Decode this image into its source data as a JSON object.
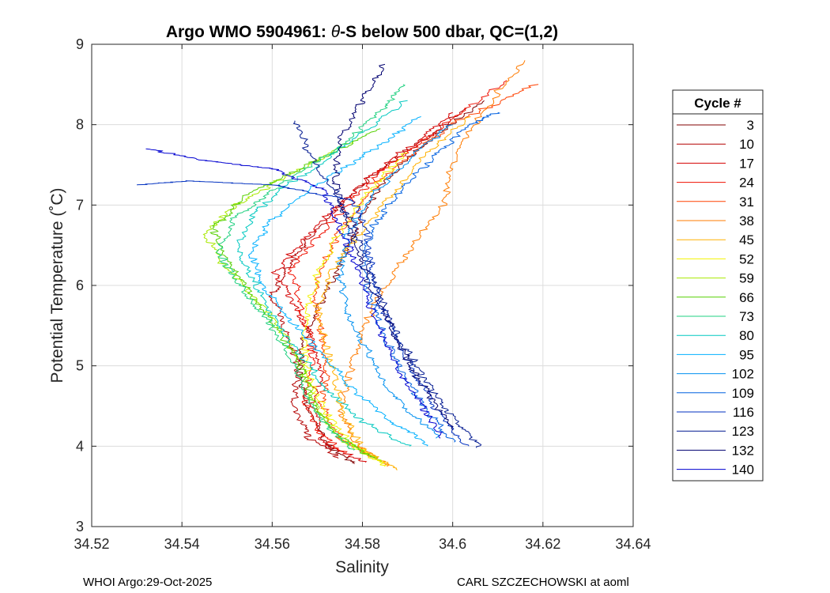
{
  "chart_data": {
    "type": "line",
    "title_prefix": "Argo WMO 5904961: ",
    "title_theta": "θ",
    "title_suffix": "-S below 500 dbar,  QC=(1,2)",
    "xlabel": "Salinity",
    "ylabel": "Potential Temperature (˚C)",
    "xlim": [
      34.52,
      34.64
    ],
    "ylim": [
      3,
      9
    ],
    "xticks": [
      34.52,
      34.54,
      34.56,
      34.58,
      34.6,
      34.62,
      34.64
    ],
    "xtick_labels": [
      "34.52",
      "34.54",
      "34.56",
      "34.58",
      "34.6",
      "34.62",
      "34.64"
    ],
    "yticks": [
      3,
      4,
      5,
      6,
      7,
      8,
      9
    ],
    "ytick_labels": [
      "3",
      "4",
      "5",
      "6",
      "7",
      "8",
      "9"
    ],
    "grid": true,
    "legend_title": "Cycle #",
    "legend_position": "right, outside plot",
    "series": [
      {
        "name": "3",
        "color": "#800000",
        "points": [
          [
            34.578,
            3.78
          ],
          [
            34.572,
            4.02
          ],
          [
            34.568,
            4.45
          ],
          [
            34.566,
            4.9
          ],
          [
            34.567,
            5.3
          ],
          [
            34.57,
            5.7
          ],
          [
            34.574,
            6.1
          ],
          [
            34.577,
            6.5
          ],
          [
            34.58,
            6.9
          ],
          [
            34.585,
            7.3
          ],
          [
            34.595,
            7.8
          ],
          [
            34.607,
            8.3
          ]
        ]
      },
      {
        "name": "10",
        "color": "#b30000",
        "points": [
          [
            34.575,
            3.85
          ],
          [
            34.568,
            4.1
          ],
          [
            34.565,
            4.5
          ],
          [
            34.566,
            5.0
          ],
          [
            34.563,
            5.4
          ],
          [
            34.56,
            5.85
          ],
          [
            34.563,
            6.2
          ],
          [
            34.568,
            6.55
          ],
          [
            34.575,
            7.0
          ],
          [
            34.582,
            7.35
          ],
          [
            34.592,
            7.75
          ],
          [
            34.603,
            8.2
          ]
        ]
      },
      {
        "name": "17",
        "color": "#d40000",
        "points": [
          [
            34.58,
            3.8
          ],
          [
            34.571,
            4.05
          ],
          [
            34.569,
            4.55
          ],
          [
            34.571,
            4.95
          ],
          [
            34.569,
            5.35
          ],
          [
            34.565,
            5.75
          ],
          [
            34.561,
            6.15
          ],
          [
            34.566,
            6.5
          ],
          [
            34.573,
            6.9
          ],
          [
            34.58,
            7.25
          ],
          [
            34.59,
            7.7
          ],
          [
            34.6,
            8.15
          ]
        ]
      },
      {
        "name": "24",
        "color": "#f01000",
        "points": [
          [
            34.576,
            3.9
          ],
          [
            34.57,
            4.2
          ],
          [
            34.567,
            4.6
          ],
          [
            34.569,
            5.05
          ],
          [
            34.568,
            5.45
          ],
          [
            34.566,
            5.8
          ],
          [
            34.564,
            6.2
          ],
          [
            34.57,
            6.6
          ],
          [
            34.578,
            7.05
          ],
          [
            34.584,
            7.4
          ],
          [
            34.596,
            7.9
          ],
          [
            34.612,
            8.55
          ]
        ]
      },
      {
        "name": "31",
        "color": "#ff4000",
        "points": [
          [
            34.583,
            3.85
          ],
          [
            34.575,
            4.1
          ],
          [
            34.571,
            4.5
          ],
          [
            34.572,
            4.95
          ],
          [
            34.571,
            5.4
          ],
          [
            34.569,
            5.85
          ],
          [
            34.571,
            6.25
          ],
          [
            34.575,
            6.65
          ],
          [
            34.58,
            7.05
          ],
          [
            34.588,
            7.5
          ],
          [
            34.6,
            8.0
          ],
          [
            34.619,
            8.5
          ]
        ]
      },
      {
        "name": "38",
        "color": "#ff7b00",
        "points": [
          [
            34.586,
            3.75
          ],
          [
            34.579,
            4.0
          ],
          [
            34.575,
            4.4
          ],
          [
            34.577,
            4.9
          ],
          [
            34.58,
            5.4
          ],
          [
            34.584,
            5.9
          ],
          [
            34.59,
            6.4
          ],
          [
            34.598,
            7.0
          ],
          [
            34.6,
            7.5
          ],
          [
            34.606,
            8.1
          ],
          [
            34.616,
            8.8
          ]
        ]
      },
      {
        "name": "45",
        "color": "#ffb000",
        "points": [
          [
            34.588,
            3.7
          ],
          [
            34.58,
            3.95
          ],
          [
            34.576,
            4.35
          ],
          [
            34.574,
            4.8
          ],
          [
            34.572,
            5.25
          ],
          [
            34.57,
            5.7
          ],
          [
            34.573,
            6.15
          ],
          [
            34.579,
            6.6
          ],
          [
            34.586,
            7.1
          ],
          [
            34.594,
            7.6
          ],
          [
            34.604,
            8.1
          ]
        ]
      },
      {
        "name": "52",
        "color": "#f2f200",
        "points": [
          [
            34.585,
            3.75
          ],
          [
            34.578,
            4.0
          ],
          [
            34.572,
            4.4
          ],
          [
            34.568,
            4.85
          ],
          [
            34.567,
            5.3
          ],
          [
            34.568,
            5.75
          ],
          [
            34.571,
            6.25
          ],
          [
            34.576,
            6.75
          ],
          [
            34.582,
            7.2
          ],
          [
            34.59,
            7.65
          ]
        ]
      },
      {
        "name": "59",
        "color": "#a8e800",
        "points": [
          [
            34.584,
            3.8
          ],
          [
            34.576,
            4.05
          ],
          [
            34.57,
            4.45
          ],
          [
            34.567,
            4.9
          ],
          [
            34.563,
            5.35
          ],
          [
            34.557,
            5.8
          ],
          [
            34.549,
            6.25
          ],
          [
            34.545,
            6.65
          ],
          [
            34.552,
            7.0
          ],
          [
            34.565,
            7.4
          ],
          [
            34.578,
            7.8
          ]
        ]
      },
      {
        "name": "66",
        "color": "#55d000",
        "points": [
          [
            34.582,
            3.85
          ],
          [
            34.574,
            4.15
          ],
          [
            34.569,
            4.55
          ],
          [
            34.566,
            5.0
          ],
          [
            34.561,
            5.45
          ],
          [
            34.555,
            5.9
          ],
          [
            34.55,
            6.3
          ],
          [
            34.547,
            6.7
          ],
          [
            34.554,
            7.1
          ],
          [
            34.57,
            7.55
          ],
          [
            34.584,
            7.95
          ]
        ]
      },
      {
        "name": "73",
        "color": "#20d080",
        "points": [
          [
            34.578,
            3.95
          ],
          [
            34.572,
            4.25
          ],
          [
            34.567,
            4.65
          ],
          [
            34.564,
            5.1
          ],
          [
            34.559,
            5.55
          ],
          [
            34.553,
            6.0
          ],
          [
            34.548,
            6.4
          ],
          [
            34.552,
            6.85
          ],
          [
            34.562,
            7.25
          ],
          [
            34.575,
            7.7
          ],
          [
            34.585,
            8.2
          ],
          [
            34.589,
            8.5
          ]
        ]
      },
      {
        "name": "80",
        "color": "#00c8c0",
        "points": [
          [
            34.59,
            4.0
          ],
          [
            34.58,
            4.3
          ],
          [
            34.572,
            4.7
          ],
          [
            34.566,
            5.15
          ],
          [
            34.56,
            5.6
          ],
          [
            34.556,
            6.05
          ],
          [
            34.552,
            6.45
          ],
          [
            34.556,
            6.9
          ],
          [
            34.565,
            7.3
          ],
          [
            34.578,
            7.8
          ],
          [
            34.59,
            8.3
          ]
        ]
      },
      {
        "name": "95",
        "color": "#00b0ff",
        "points": [
          [
            34.595,
            4.0
          ],
          [
            34.585,
            4.35
          ],
          [
            34.577,
            4.75
          ],
          [
            34.57,
            5.2
          ],
          [
            34.563,
            5.6
          ],
          [
            34.558,
            6.0
          ],
          [
            34.555,
            6.4
          ],
          [
            34.56,
            6.8
          ],
          [
            34.57,
            7.25
          ],
          [
            34.583,
            7.7
          ],
          [
            34.593,
            8.1
          ]
        ]
      },
      {
        "name": "102",
        "color": "#0090f0",
        "points": [
          [
            34.597,
            4.1
          ],
          [
            34.59,
            4.45
          ],
          [
            34.584,
            4.85
          ],
          [
            34.58,
            5.3
          ],
          [
            34.576,
            5.75
          ],
          [
            34.575,
            6.2
          ],
          [
            34.577,
            6.65
          ],
          [
            34.582,
            7.1
          ],
          [
            34.59,
            7.55
          ],
          [
            34.6,
            8.0
          ]
        ]
      },
      {
        "name": "109",
        "color": "#0060e0",
        "points": [
          [
            34.6,
            4.05
          ],
          [
            34.594,
            4.45
          ],
          [
            34.589,
            4.9
          ],
          [
            34.585,
            5.35
          ],
          [
            34.582,
            5.8
          ],
          [
            34.58,
            6.25
          ],
          [
            34.582,
            6.7
          ],
          [
            34.588,
            7.15
          ],
          [
            34.596,
            7.6
          ],
          [
            34.604,
            8.0
          ],
          [
            34.61,
            8.15
          ]
        ]
      },
      {
        "name": "116",
        "color": "#0030c0",
        "points": [
          [
            34.603,
            4.0
          ],
          [
            34.597,
            4.4
          ],
          [
            34.592,
            4.85
          ],
          [
            34.588,
            5.3
          ],
          [
            34.584,
            5.75
          ],
          [
            34.582,
            6.2
          ],
          [
            34.581,
            6.65
          ],
          [
            34.578,
            7.05
          ],
          [
            34.56,
            7.25
          ],
          [
            34.541,
            7.3
          ],
          [
            34.53,
            7.25
          ]
        ]
      },
      {
        "name": "123",
        "color": "#001890",
        "points": [
          [
            34.606,
            3.98
          ],
          [
            34.6,
            4.35
          ],
          [
            34.594,
            4.8
          ],
          [
            34.589,
            5.25
          ],
          [
            34.585,
            5.7
          ],
          [
            34.582,
            6.15
          ],
          [
            34.579,
            6.6
          ],
          [
            34.575,
            7.05
          ],
          [
            34.569,
            7.55
          ],
          [
            34.565,
            8.05
          ]
        ]
      },
      {
        "name": "132",
        "color": "#000070",
        "points": [
          [
            34.6,
            4.2
          ],
          [
            34.595,
            4.6
          ],
          [
            34.59,
            5.05
          ],
          [
            34.586,
            5.5
          ],
          [
            34.582,
            5.95
          ],
          [
            34.579,
            6.4
          ],
          [
            34.576,
            6.85
          ],
          [
            34.574,
            7.3
          ],
          [
            34.575,
            7.8
          ],
          [
            34.58,
            8.3
          ],
          [
            34.585,
            8.75
          ]
        ]
      },
      {
        "name": "140",
        "color": "#0000d0",
        "points": [
          [
            34.598,
            4.1
          ],
          [
            34.593,
            4.5
          ],
          [
            34.588,
            4.95
          ],
          [
            34.584,
            5.4
          ],
          [
            34.581,
            5.85
          ],
          [
            34.578,
            6.3
          ],
          [
            34.575,
            6.75
          ],
          [
            34.571,
            7.2
          ],
          [
            34.56,
            7.45
          ],
          [
            34.545,
            7.55
          ],
          [
            34.532,
            7.7
          ]
        ]
      }
    ]
  },
  "footer": {
    "left": "WHOI Argo:29-Oct-2025",
    "right": "CARL SZCZECHOWSKI at aoml"
  }
}
